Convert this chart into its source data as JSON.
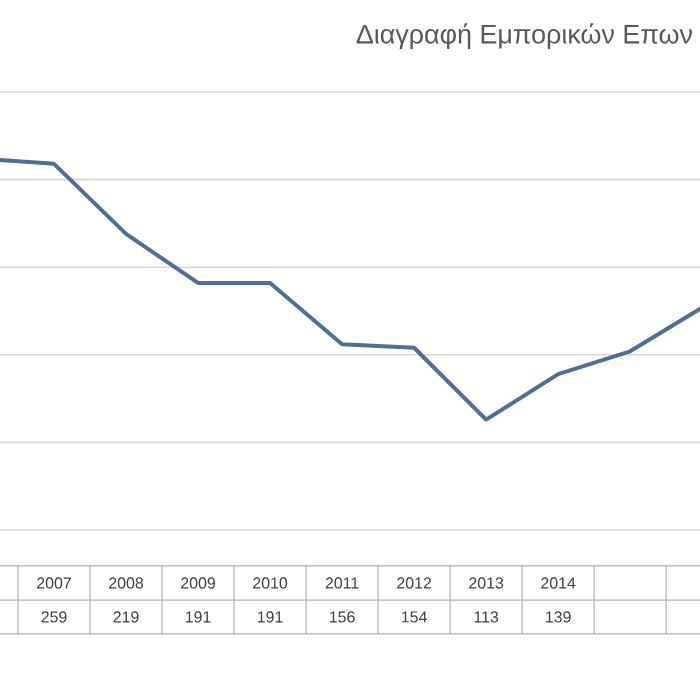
{
  "chart_data": {
    "type": "line",
    "title": "Διαγραφή Εμπορικών Επων",
    "categories": [
      null,
      "2007",
      "2008",
      "2009",
      "2010",
      "2011",
      "2012",
      "2013",
      "2014",
      null,
      null
    ],
    "values": [
      262,
      259,
      219,
      191,
      191,
      156,
      154,
      113,
      139,
      152,
      177
    ],
    "value_labels": [
      null,
      "259",
      "219",
      "191",
      "191",
      "156",
      "154",
      "113",
      "139",
      null,
      null
    ],
    "color": "#4e6f98",
    "ylim": [
      50,
      300
    ],
    "yticks": [
      {
        "value": 50,
        "label": null
      },
      {
        "value": 100,
        "label": null
      },
      {
        "value": 150,
        "label": null
      },
      {
        "value": 200,
        "label": null
      },
      {
        "value": 250,
        "label": null
      },
      {
        "value": 300,
        "label": null
      }
    ],
    "grid": "y",
    "marker": "none",
    "line_style": "solid"
  }
}
